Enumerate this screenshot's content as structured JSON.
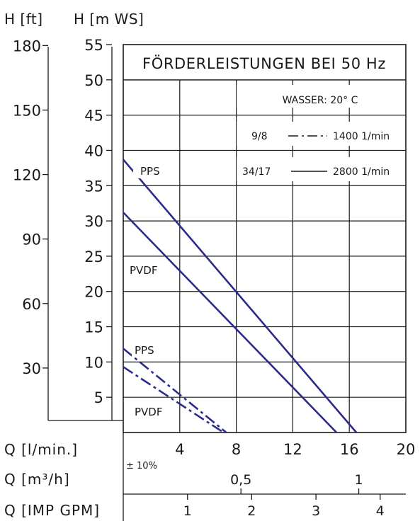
{
  "chart_data": {
    "type": "line",
    "title": "FÖRDERLEISTUNGEN BEI 50 Hz",
    "annotations": {
      "water": "WASSER: 20° C",
      "tolerance": "± 10%"
    },
    "legend": [
      {
        "model": "9/8",
        "style": "dashdot",
        "speed": "1400 1/min"
      },
      {
        "model": "34/17",
        "style": "solid",
        "speed": "2800 1/min"
      }
    ],
    "y_axes": [
      {
        "label": "H [m WS]",
        "ticks": [
          5,
          10,
          15,
          20,
          25,
          30,
          35,
          40,
          45,
          50,
          55
        ],
        "range": [
          0,
          55
        ]
      },
      {
        "label": "H [ft]",
        "ticks": [
          30,
          60,
          90,
          120,
          150,
          180
        ]
      }
    ],
    "x_axes": [
      {
        "label": "Q [l/min.]",
        "ticks": [
          4,
          8,
          12,
          16,
          20
        ],
        "range": [
          0,
          20
        ]
      },
      {
        "label": "Q [m³/h]",
        "ticks": [
          "0,5",
          "1"
        ],
        "tick_positions_lmin": [
          8.33,
          16.67
        ]
      },
      {
        "label": "Q [IMP GPM]",
        "ticks": [
          1,
          2,
          3,
          4
        ],
        "tick_positions_lmin": [
          4.55,
          9.09,
          13.64,
          18.18
        ]
      }
    ],
    "series": [
      {
        "name": "PPS",
        "group": "34/17",
        "style": "solid",
        "x": [
          0,
          16.5
        ],
        "y": [
          38.7,
          0
        ]
      },
      {
        "name": "PVDF",
        "group": "34/17",
        "style": "solid",
        "x": [
          0,
          15.1
        ],
        "y": [
          31.2,
          0
        ]
      },
      {
        "name": "PPS",
        "group": "9/8",
        "style": "dashdot",
        "x": [
          0,
          7.3
        ],
        "y": [
          11.9,
          0
        ]
      },
      {
        "name": "PVDF",
        "group": "9/8",
        "style": "dashdot",
        "x": [
          0,
          7.1
        ],
        "y": [
          9.3,
          0
        ]
      }
    ],
    "grid": true,
    "line_color": "#2b2c8a"
  }
}
